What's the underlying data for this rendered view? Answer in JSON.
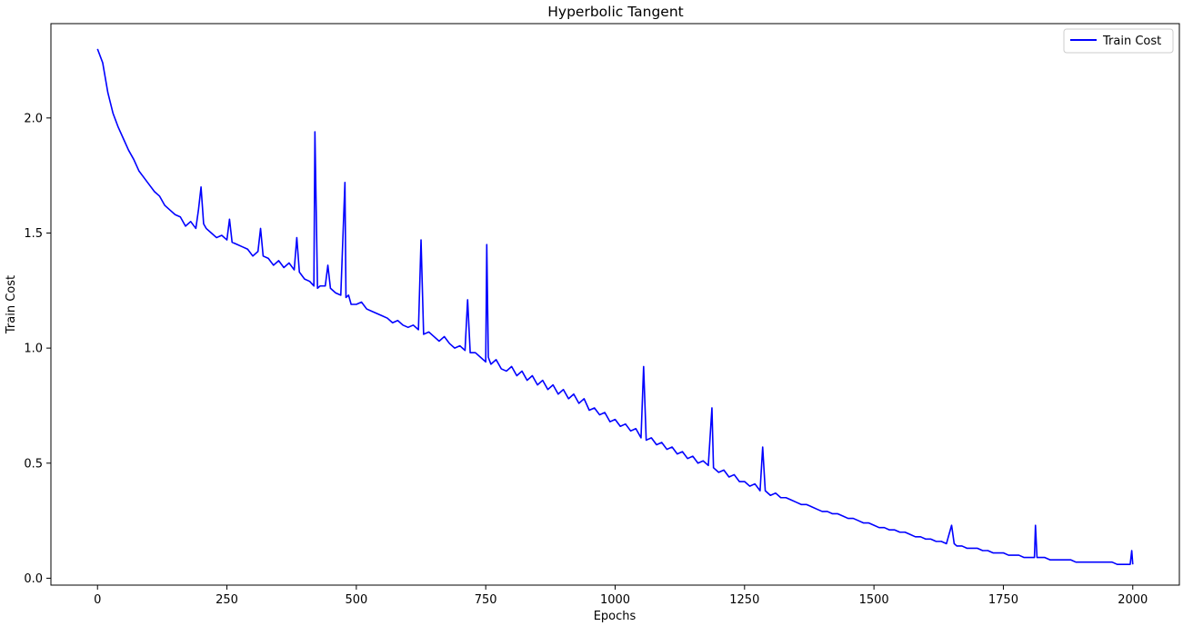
{
  "chart_data": {
    "type": "line",
    "title": "Hyperbolic Tangent",
    "xlabel": "Epochs",
    "ylabel": "Train Cost",
    "xlim": [
      -90,
      2090
    ],
    "ylim": [
      -0.03,
      2.41
    ],
    "xticks": [
      0,
      250,
      500,
      750,
      1000,
      1250,
      1500,
      1750,
      2000
    ],
    "xtick_labels": [
      "0",
      "250",
      "500",
      "750",
      "1000",
      "1250",
      "1500",
      "1750",
      "2000"
    ],
    "yticks": [
      0.0,
      0.5,
      1.0,
      1.5,
      2.0
    ],
    "ytick_labels": [
      "0.0",
      "0.5",
      "1.0",
      "1.5",
      "2.0"
    ],
    "grid": false,
    "legend": {
      "location": "top-right",
      "entries": [
        "Train Cost"
      ]
    },
    "series": [
      {
        "name": "Train Cost",
        "color": "#0000ff",
        "x": [
          0,
          10,
          20,
          30,
          40,
          50,
          60,
          70,
          80,
          90,
          100,
          110,
          120,
          130,
          140,
          150,
          160,
          170,
          180,
          190,
          195,
          200,
          205,
          210,
          220,
          230,
          240,
          250,
          255,
          260,
          270,
          280,
          290,
          300,
          310,
          315,
          320,
          330,
          340,
          350,
          360,
          370,
          380,
          385,
          390,
          400,
          410,
          418,
          420,
          425,
          430,
          440,
          445,
          450,
          460,
          470,
          478,
          480,
          485,
          490,
          500,
          510,
          520,
          530,
          540,
          550,
          560,
          570,
          580,
          590,
          600,
          610,
          620,
          625,
          630,
          640,
          650,
          660,
          670,
          680,
          690,
          700,
          710,
          715,
          720,
          730,
          740,
          750,
          752,
          755,
          760,
          770,
          780,
          790,
          800,
          810,
          820,
          830,
          840,
          850,
          860,
          870,
          880,
          890,
          900,
          910,
          920,
          930,
          940,
          950,
          960,
          970,
          980,
          990,
          1000,
          1010,
          1020,
          1030,
          1040,
          1050,
          1055,
          1060,
          1070,
          1080,
          1090,
          1100,
          1110,
          1120,
          1130,
          1140,
          1150,
          1160,
          1170,
          1180,
          1187,
          1190,
          1200,
          1210,
          1220,
          1230,
          1240,
          1250,
          1260,
          1270,
          1280,
          1285,
          1290,
          1300,
          1310,
          1320,
          1330,
          1340,
          1350,
          1360,
          1370,
          1380,
          1390,
          1400,
          1410,
          1420,
          1430,
          1440,
          1450,
          1460,
          1470,
          1480,
          1490,
          1500,
          1510,
          1520,
          1530,
          1540,
          1550,
          1560,
          1570,
          1580,
          1590,
          1600,
          1610,
          1620,
          1630,
          1640,
          1650,
          1655,
          1660,
          1670,
          1680,
          1690,
          1700,
          1710,
          1720,
          1730,
          1740,
          1750,
          1760,
          1770,
          1780,
          1790,
          1800,
          1810,
          1812,
          1815,
          1820,
          1830,
          1840,
          1850,
          1860,
          1870,
          1880,
          1890,
          1900,
          1910,
          1920,
          1930,
          1940,
          1950,
          1960,
          1970,
          1980,
          1990,
          1995,
          1998,
          2000
        ],
        "y": [
          2.3,
          2.24,
          2.11,
          2.02,
          1.96,
          1.91,
          1.86,
          1.82,
          1.77,
          1.74,
          1.71,
          1.68,
          1.66,
          1.62,
          1.6,
          1.58,
          1.57,
          1.53,
          1.55,
          1.52,
          1.6,
          1.7,
          1.54,
          1.52,
          1.5,
          1.48,
          1.49,
          1.47,
          1.56,
          1.46,
          1.45,
          1.44,
          1.43,
          1.4,
          1.42,
          1.52,
          1.4,
          1.39,
          1.36,
          1.38,
          1.35,
          1.37,
          1.34,
          1.48,
          1.33,
          1.3,
          1.29,
          1.27,
          1.94,
          1.26,
          1.27,
          1.27,
          1.36,
          1.26,
          1.24,
          1.23,
          1.72,
          1.22,
          1.23,
          1.19,
          1.19,
          1.2,
          1.17,
          1.16,
          1.15,
          1.14,
          1.13,
          1.11,
          1.12,
          1.1,
          1.09,
          1.1,
          1.08,
          1.47,
          1.06,
          1.07,
          1.05,
          1.03,
          1.05,
          1.02,
          1.0,
          1.01,
          0.99,
          1.21,
          0.98,
          0.98,
          0.96,
          0.94,
          1.45,
          0.96,
          0.93,
          0.95,
          0.91,
          0.9,
          0.92,
          0.88,
          0.9,
          0.86,
          0.88,
          0.84,
          0.86,
          0.82,
          0.84,
          0.8,
          0.82,
          0.78,
          0.8,
          0.76,
          0.78,
          0.73,
          0.74,
          0.71,
          0.72,
          0.68,
          0.69,
          0.66,
          0.67,
          0.64,
          0.65,
          0.61,
          0.92,
          0.6,
          0.61,
          0.58,
          0.59,
          0.56,
          0.57,
          0.54,
          0.55,
          0.52,
          0.53,
          0.5,
          0.51,
          0.49,
          0.74,
          0.48,
          0.46,
          0.47,
          0.44,
          0.45,
          0.42,
          0.42,
          0.4,
          0.41,
          0.38,
          0.57,
          0.38,
          0.36,
          0.37,
          0.35,
          0.35,
          0.34,
          0.33,
          0.32,
          0.32,
          0.31,
          0.3,
          0.29,
          0.29,
          0.28,
          0.28,
          0.27,
          0.26,
          0.26,
          0.25,
          0.24,
          0.24,
          0.23,
          0.22,
          0.22,
          0.21,
          0.21,
          0.2,
          0.2,
          0.19,
          0.18,
          0.18,
          0.17,
          0.17,
          0.16,
          0.16,
          0.15,
          0.23,
          0.15,
          0.14,
          0.14,
          0.13,
          0.13,
          0.13,
          0.12,
          0.12,
          0.11,
          0.11,
          0.11,
          0.1,
          0.1,
          0.1,
          0.09,
          0.09,
          0.09,
          0.23,
          0.09,
          0.09,
          0.09,
          0.08,
          0.08,
          0.08,
          0.08,
          0.08,
          0.07,
          0.07,
          0.07,
          0.07,
          0.07,
          0.07,
          0.07,
          0.07,
          0.06,
          0.06,
          0.06,
          0.06,
          0.12,
          0.06
        ]
      }
    ]
  }
}
